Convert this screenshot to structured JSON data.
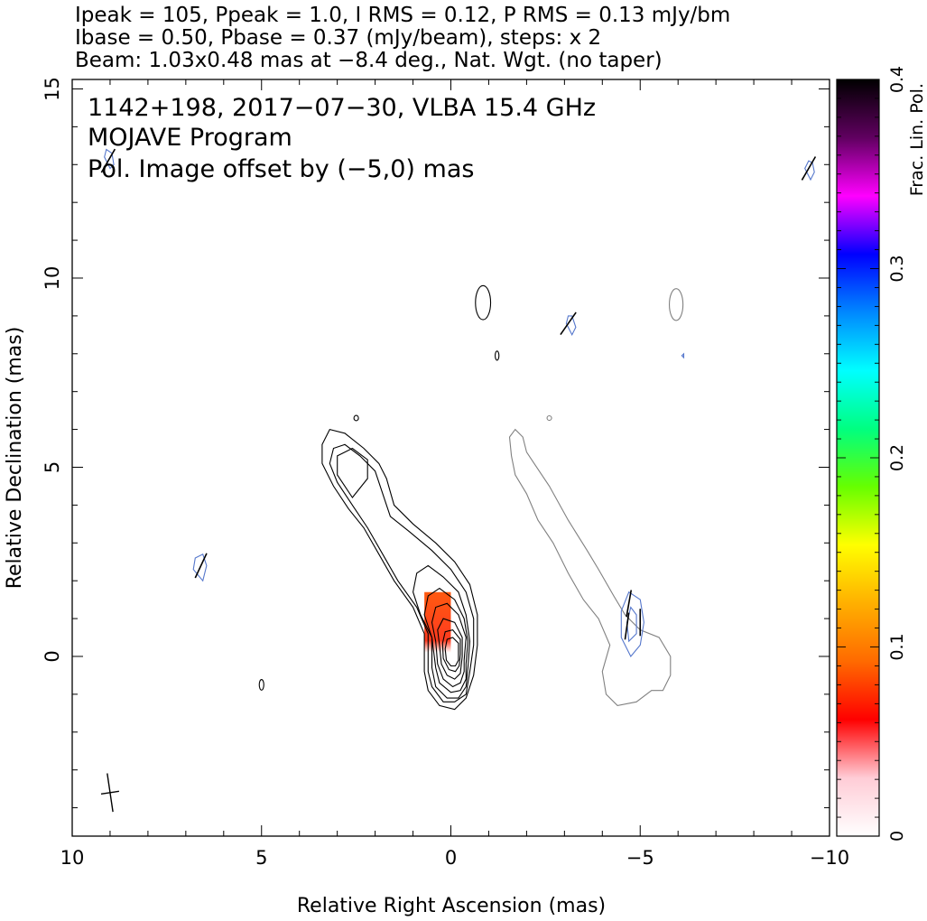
{
  "header": {
    "line1": "Ipeak = 105, Ppeak = 1.0, I RMS = 0.12, P RMS = 0.13 mJy/bm",
    "line2": "Ibase = 0.50, Pbase = 0.37 (mJy/beam), steps: x 2",
    "line3": "Beam: 1.03x0.48 mas at −8.4 deg., Nat. Wgt. (no taper)"
  },
  "chart_data": {
    "type": "contour",
    "title": "1142+198, 2017−07−30, VLBA 15.4 GHz",
    "subtitle": "MOJAVE Program",
    "annotation": "Pol. Image offset by (−5,0) mas",
    "annotation_color": "#5577cc",
    "xlabel": "Relative Right Ascension (mas)",
    "ylabel": "Relative Declination (mas)",
    "xlim": [
      10,
      -10
    ],
    "ylim": [
      -4.75,
      15.25
    ],
    "x_ticks": [
      10,
      5,
      0,
      -5,
      -10
    ],
    "x_tick_labels": [
      "10",
      "5",
      "0",
      "−5",
      "−10"
    ],
    "y_ticks": [
      0,
      5,
      10,
      15
    ],
    "y_tick_labels": [
      "0",
      "5",
      "10",
      "15"
    ],
    "intensity_peak_mJy": 105,
    "contour_base_mJy": 0.5,
    "contour_step_factor": 2,
    "stokes_I_contours_main": [
      [
        [
          -0.6,
          -0.5
        ],
        [
          -0.7,
          0.3
        ],
        [
          -0.7,
          1.1
        ],
        [
          -0.5,
          1.9
        ],
        [
          -0.1,
          2.5
        ],
        [
          0.4,
          3.0
        ],
        [
          1.0,
          3.5
        ],
        [
          1.5,
          4.0
        ],
        [
          1.7,
          4.7
        ],
        [
          1.9,
          5.1
        ],
        [
          2.3,
          5.5
        ],
        [
          2.8,
          5.9
        ],
        [
          3.2,
          6.0
        ],
        [
          3.4,
          5.6
        ],
        [
          3.4,
          5.1
        ],
        [
          3.1,
          4.5
        ],
        [
          2.7,
          3.9
        ],
        [
          2.3,
          3.4
        ],
        [
          1.9,
          2.7
        ],
        [
          1.5,
          2.0
        ],
        [
          1.0,
          1.3
        ],
        [
          0.7,
          0.6
        ],
        [
          0.7,
          -0.4
        ],
        [
          0.6,
          -0.9
        ],
        [
          0.3,
          -1.3
        ],
        [
          -0.1,
          -1.4
        ],
        [
          -0.4,
          -1.1
        ],
        [
          -0.6,
          -0.5
        ]
      ],
      [
        [
          -0.5,
          -0.4
        ],
        [
          -0.6,
          0.3
        ],
        [
          -0.6,
          1.0
        ],
        [
          -0.4,
          1.7
        ],
        [
          0.0,
          2.3
        ],
        [
          0.5,
          2.8
        ],
        [
          1.1,
          3.3
        ],
        [
          1.6,
          3.7
        ],
        [
          1.8,
          4.3
        ],
        [
          2.0,
          4.9
        ],
        [
          2.4,
          5.3
        ],
        [
          2.8,
          5.6
        ],
        [
          3.1,
          5.5
        ],
        [
          3.2,
          5.1
        ],
        [
          3.0,
          4.6
        ],
        [
          2.6,
          4.0
        ],
        [
          2.2,
          3.4
        ],
        [
          1.8,
          2.7
        ],
        [
          1.4,
          2.0
        ],
        [
          0.9,
          1.3
        ],
        [
          0.6,
          0.6
        ],
        [
          0.6,
          -0.4
        ],
        [
          0.5,
          -0.8
        ],
        [
          0.2,
          -1.2
        ],
        [
          -0.1,
          -1.2
        ],
        [
          -0.4,
          -1.0
        ],
        [
          -0.5,
          -0.4
        ]
      ],
      [
        [
          -0.45,
          -0.3
        ],
        [
          -0.5,
          0.4
        ],
        [
          -0.4,
          1.1
        ],
        [
          -0.2,
          1.7
        ],
        [
          0.2,
          2.1
        ],
        [
          0.6,
          2.4
        ],
        [
          0.9,
          2.2
        ],
        [
          1.0,
          1.7
        ],
        [
          0.8,
          1.1
        ],
        [
          0.5,
          0.5
        ],
        [
          0.5,
          -0.3
        ],
        [
          0.4,
          -0.8
        ],
        [
          0.1,
          -1.1
        ],
        [
          -0.2,
          -1.1
        ],
        [
          -0.4,
          -0.8
        ],
        [
          -0.45,
          -0.3
        ]
      ],
      [
        [
          -0.4,
          -0.2
        ],
        [
          -0.45,
          0.4
        ],
        [
          -0.35,
          1.0
        ],
        [
          -0.1,
          1.5
        ],
        [
          0.3,
          1.8
        ],
        [
          0.6,
          1.6
        ],
        [
          0.7,
          1.1
        ],
        [
          0.5,
          0.5
        ],
        [
          0.4,
          -0.3
        ],
        [
          0.3,
          -0.7
        ],
        [
          0.0,
          -0.95
        ],
        [
          -0.25,
          -0.9
        ],
        [
          -0.4,
          -0.6
        ],
        [
          -0.4,
          -0.2
        ]
      ],
      [
        [
          -0.35,
          -0.1
        ],
        [
          -0.4,
          0.5
        ],
        [
          -0.2,
          1.1
        ],
        [
          0.1,
          1.4
        ],
        [
          0.4,
          1.3
        ],
        [
          0.5,
          0.9
        ],
        [
          0.4,
          0.4
        ],
        [
          0.35,
          -0.2
        ],
        [
          0.2,
          -0.6
        ],
        [
          -0.05,
          -0.8
        ],
        [
          -0.25,
          -0.7
        ],
        [
          -0.35,
          -0.4
        ],
        [
          -0.35,
          -0.1
        ]
      ],
      [
        [
          -0.3,
          0.0
        ],
        [
          -0.3,
          0.5
        ],
        [
          -0.1,
          0.9
        ],
        [
          0.2,
          1.0
        ],
        [
          0.35,
          0.7
        ],
        [
          0.3,
          0.3
        ],
        [
          0.25,
          -0.2
        ],
        [
          0.1,
          -0.5
        ],
        [
          -0.1,
          -0.6
        ],
        [
          -0.25,
          -0.45
        ],
        [
          -0.3,
          0.0
        ]
      ],
      [
        [
          -0.25,
          0.05
        ],
        [
          -0.25,
          0.45
        ],
        [
          -0.05,
          0.7
        ],
        [
          0.15,
          0.65
        ],
        [
          0.22,
          0.35
        ],
        [
          0.2,
          -0.05
        ],
        [
          0.05,
          -0.35
        ],
        [
          -0.12,
          -0.4
        ],
        [
          -0.22,
          -0.25
        ],
        [
          -0.25,
          0.05
        ]
      ],
      [
        [
          -0.2,
          0.0
        ],
        [
          -0.2,
          0.35
        ],
        [
          -0.05,
          0.5
        ],
        [
          0.1,
          0.45
        ],
        [
          0.15,
          0.2
        ],
        [
          0.12,
          -0.1
        ],
        [
          0.0,
          -0.25
        ],
        [
          -0.12,
          -0.25
        ],
        [
          -0.2,
          -0.1
        ],
        [
          -0.2,
          0.0
        ]
      ],
      [
        [
          2.6,
          4.2
        ],
        [
          2.2,
          4.7
        ],
        [
          2.2,
          5.2
        ],
        [
          2.6,
          5.5
        ],
        [
          3.0,
          5.3
        ],
        [
          3.0,
          4.8
        ],
        [
          2.6,
          4.2
        ]
      ]
    ],
    "stokes_I_small_components": [
      {
        "x": -0.85,
        "y": 9.35,
        "rx": 0.2,
        "ry": 0.45
      },
      {
        "x": -1.22,
        "y": 7.95,
        "rx": 0.05,
        "ry": 0.12
      },
      {
        "x": 2.5,
        "y": 6.3,
        "rx": 0.06,
        "ry": 0.07
      },
      {
        "x": 5.0,
        "y": -0.75,
        "rx": 0.06,
        "ry": 0.14
      }
    ],
    "pol_image_contour": [
      [
        -5.6,
        -0.9
      ],
      [
        -5.3,
        -0.9
      ],
      [
        -4.9,
        -1.2
      ],
      [
        -4.4,
        -1.3
      ],
      [
        -4.1,
        -1.0
      ],
      [
        -4.0,
        -0.4
      ],
      [
        -4.2,
        0.3
      ],
      [
        -3.9,
        1.0
      ],
      [
        -3.5,
        1.5
      ],
      [
        -3.1,
        2.2
      ],
      [
        -2.7,
        3.0
      ],
      [
        -2.3,
        3.6
      ],
      [
        -2.0,
        4.3
      ],
      [
        -1.7,
        4.8
      ],
      [
        -1.6,
        5.3
      ],
      [
        -1.55,
        5.8
      ],
      [
        -1.7,
        6.0
      ],
      [
        -1.9,
        5.8
      ],
      [
        -2.0,
        5.4
      ],
      [
        -2.2,
        5.1
      ],
      [
        -2.6,
        4.5
      ],
      [
        -3.1,
        3.6
      ],
      [
        -3.6,
        2.8
      ],
      [
        -3.9,
        2.3
      ],
      [
        -4.3,
        1.6
      ],
      [
        -4.6,
        1.1
      ],
      [
        -5.0,
        0.7
      ],
      [
        -5.5,
        0.5
      ],
      [
        -5.8,
        0.0
      ],
      [
        -5.8,
        -0.5
      ],
      [
        -5.6,
        -0.9
      ]
    ],
    "pol_image_small_components": [
      {
        "x": -5.95,
        "y": 9.3,
        "rx": 0.18,
        "ry": 0.42
      },
      {
        "x": -2.6,
        "y": 6.3,
        "rx": 0.06,
        "ry": 0.06
      }
    ],
    "pol_contours": [
      [
        [
          -4.5,
          0.5
        ],
        [
          -4.5,
          1.2
        ],
        [
          -4.7,
          1.7
        ],
        [
          -5.0,
          1.5
        ],
        [
          -5.1,
          0.9
        ],
        [
          -5.0,
          0.3
        ],
        [
          -4.75,
          0.0
        ],
        [
          -4.5,
          0.5
        ]
      ],
      [
        [
          -4.7,
          0.4
        ],
        [
          -4.65,
          0.9
        ],
        [
          -4.75,
          1.3
        ],
        [
          -4.9,
          1.1
        ],
        [
          -4.9,
          0.6
        ],
        [
          -4.7,
          0.4
        ]
      ],
      [
        [
          6.55,
          2.0
        ],
        [
          6.8,
          2.3
        ],
        [
          6.75,
          2.6
        ],
        [
          6.55,
          2.7
        ],
        [
          6.45,
          2.4
        ],
        [
          6.55,
          2.0
        ]
      ],
      [
        [
          -3.2,
          8.5
        ],
        [
          -3.05,
          8.8
        ],
        [
          -3.1,
          9.0
        ],
        [
          -3.2,
          9.0
        ],
        [
          -3.3,
          8.7
        ],
        [
          -3.2,
          8.5
        ]
      ],
      [
        [
          -9.5,
          12.6
        ],
        [
          -9.35,
          12.9
        ],
        [
          -9.45,
          13.1
        ],
        [
          -9.55,
          13.05
        ],
        [
          -9.6,
          12.8
        ],
        [
          -9.5,
          12.6
        ]
      ],
      [
        [
          9.0,
          12.9
        ],
        [
          9.15,
          13.2
        ],
        [
          9.1,
          13.4
        ],
        [
          8.95,
          13.3
        ],
        [
          8.9,
          13.0
        ],
        [
          9.0,
          12.9
        ]
      ],
      [
        [
          -6.15,
          7.9
        ],
        [
          -6.15,
          8.0
        ],
        [
          -6.1,
          7.95
        ],
        [
          -6.15,
          7.9
        ]
      ]
    ],
    "evpa_vectors": [
      {
        "x": -4.7,
        "y": 1.4,
        "angle_deg": 10
      },
      {
        "x": -4.65,
        "y": 0.8,
        "angle_deg": 8
      },
      {
        "x": -5.0,
        "y": 0.9,
        "angle_deg": 0
      },
      {
        "x": 6.6,
        "y": 2.4,
        "angle_deg": 25
      },
      {
        "x": -3.1,
        "y": 8.8,
        "angle_deg": 35
      },
      {
        "x": -9.45,
        "y": 12.9,
        "angle_deg": 30
      },
      {
        "x": 9.05,
        "y": 13.1,
        "angle_deg": 30
      }
    ],
    "frac_pol_region": {
      "x_range": [
        0.7,
        0.0
      ],
      "y_range": [
        0.1,
        1.7
      ],
      "frac_pol": 0.1
    },
    "beam": {
      "major_mas": 1.03,
      "minor_mas": 0.48,
      "pa_deg": -8.4,
      "center": [
        9.0,
        -3.6
      ]
    },
    "colorbar": {
      "label": "Frac. Lin. Pol.",
      "range": [
        0,
        0.4
      ],
      "ticks": [
        0,
        0.1,
        0.2,
        0.3,
        0.4
      ],
      "tick_labels": [
        "0",
        "0.1",
        "0.2",
        "0.3",
        "0.4"
      ],
      "colors": [
        "#ffffff",
        "#ffccd6",
        "#ff0000",
        "#ff6a00",
        "#ffb000",
        "#ffff00",
        "#66ff00",
        "#00ff80",
        "#00ffff",
        "#0088ff",
        "#0000ff",
        "#ff00ff",
        "#600060",
        "#000000"
      ]
    },
    "colors": {
      "stokes_I": "#000000",
      "pol_image": "#808080",
      "pol_contour": "#5577cc",
      "evpa": "#000000"
    }
  }
}
